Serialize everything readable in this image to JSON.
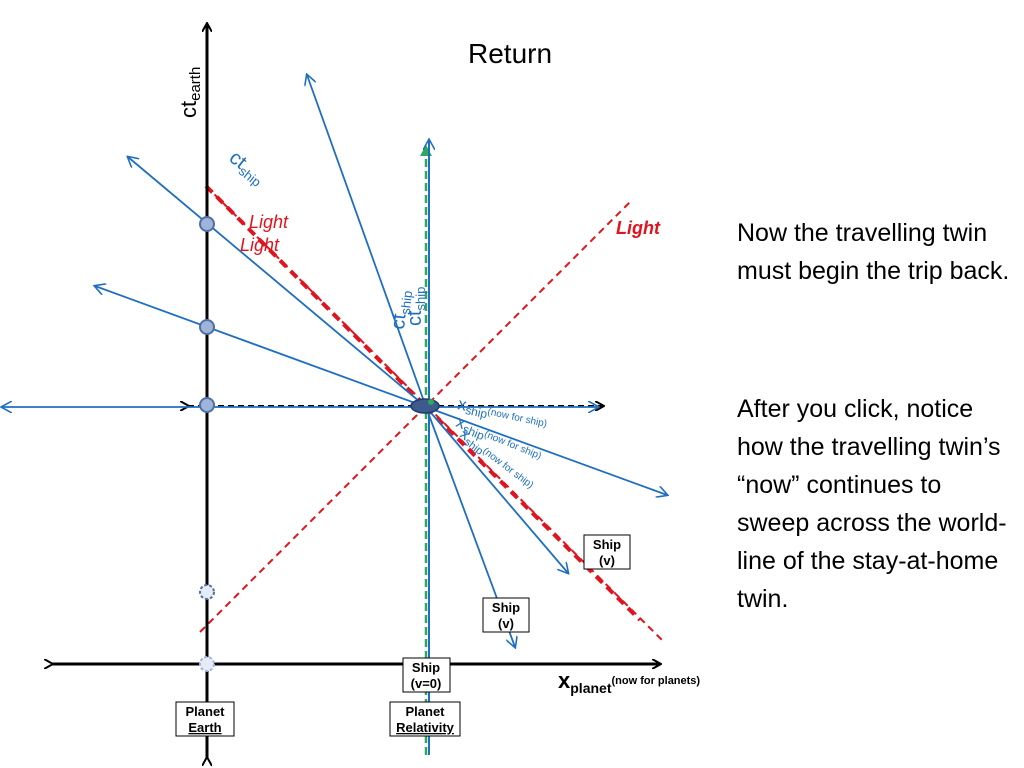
{
  "title": "Return",
  "paragraphs": [
    "Now  the travelling twin must begin the trip back.",
    "After you click, notice how the travelling twin’s “now” continues to sweep across the world-line of the stay-at-home twin."
  ],
  "axis_labels": {
    "ct_earth": "ct",
    "ct_earth_sub": "earth",
    "x_planet": "x",
    "x_planet_sub": "planet",
    "x_planet_note": "(now for planets)"
  },
  "ship_labels": {
    "ct_ship": "ct",
    "ct_ship_sub": "ship",
    "x_ship": "x",
    "x_ship_sub": "ship",
    "now_for_ship": "(now for ship)"
  },
  "light_label": "Light",
  "boxes": {
    "planet_earth": [
      "Planet",
      "Earth"
    ],
    "planet_relativity": [
      "Planet",
      "Relativity"
    ],
    "ship_v0": [
      "Ship",
      "(v=0)"
    ],
    "ship_v": [
      "Ship",
      "(v)"
    ]
  },
  "colors": {
    "axis": "#000000",
    "ship_lines": "#1f6fc0",
    "light": "#e0141e",
    "world_line_green": "#2fa85a",
    "event_dot": "#4f6fa8"
  }
}
